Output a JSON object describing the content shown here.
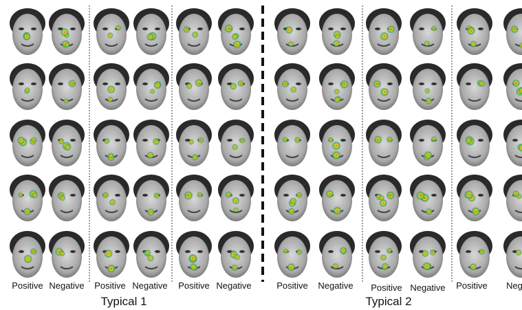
{
  "panels": [
    {
      "title": "Typical 1",
      "labels": [
        "Positive",
        "Negative",
        "Positive",
        "Negative",
        "Positive",
        "Negative"
      ]
    },
    {
      "title": "Typical 2",
      "labels": [
        "Positive",
        "Negative",
        "Positive",
        "Negative",
        "Positive",
        "Neg"
      ]
    }
  ]
}
